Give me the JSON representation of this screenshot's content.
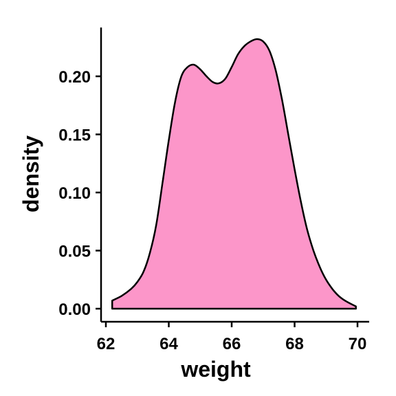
{
  "chart_data": {
    "type": "area",
    "title": "",
    "xlabel": "weight",
    "ylabel": "density",
    "xlim": [
      62,
      70
    ],
    "ylim": [
      0,
      0.24
    ],
    "x_ticks": [
      62,
      64,
      66,
      68,
      70
    ],
    "x_tick_labels": [
      "62",
      "64",
      "66",
      "68",
      "70"
    ],
    "y_ticks": [
      0.0,
      0.05,
      0.1,
      0.15,
      0.2
    ],
    "y_tick_labels": [
      "0.00",
      "0.05",
      "0.10",
      "0.15",
      "0.20"
    ],
    "grid": false,
    "legend": "none",
    "fill_color": "#FC96C9",
    "line_color": "#000000",
    "series": [
      {
        "x": [
          62.2,
          62.5,
          62.8,
          63.0,
          63.2,
          63.4,
          63.6,
          63.8,
          64.0,
          64.2,
          64.4,
          64.6,
          64.8,
          65.0,
          65.2,
          65.4,
          65.6,
          65.8,
          66.0,
          66.2,
          66.4,
          66.6,
          66.8,
          67.0,
          67.2,
          67.4,
          67.6,
          67.8,
          68.0,
          68.2,
          68.4,
          68.6,
          68.8,
          69.0,
          69.2,
          69.4,
          69.6,
          69.8,
          69.95
        ],
        "y": [
          0.007,
          0.011,
          0.017,
          0.023,
          0.032,
          0.048,
          0.072,
          0.108,
          0.145,
          0.178,
          0.2,
          0.208,
          0.21,
          0.206,
          0.2,
          0.195,
          0.194,
          0.198,
          0.208,
          0.219,
          0.226,
          0.23,
          0.232,
          0.23,
          0.222,
          0.205,
          0.18,
          0.15,
          0.12,
          0.092,
          0.068,
          0.05,
          0.036,
          0.025,
          0.017,
          0.011,
          0.007,
          0.004,
          0.002
        ]
      }
    ]
  }
}
